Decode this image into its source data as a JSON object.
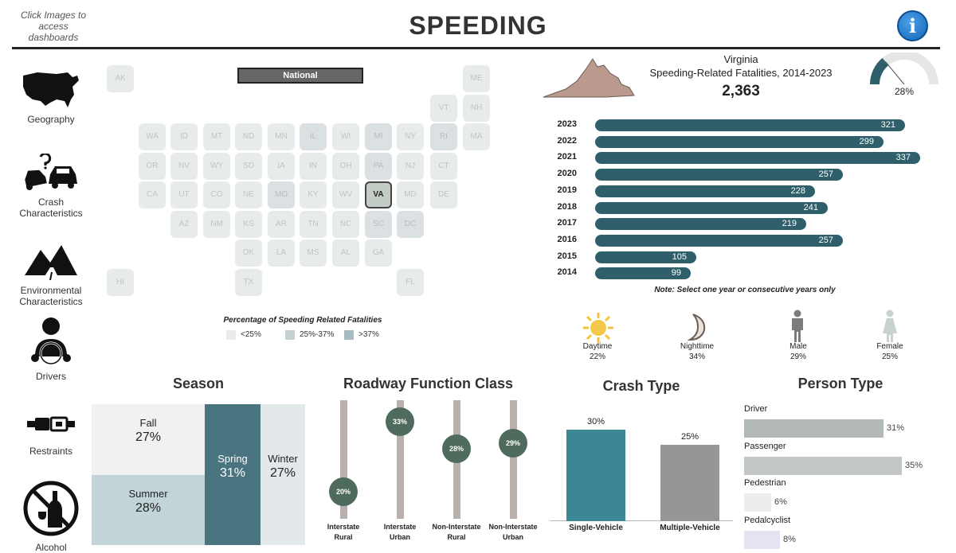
{
  "header": {
    "hint": "Click Images to access dashboards",
    "title": "SPEEDING",
    "info_glyph": "i"
  },
  "nav": {
    "items": [
      {
        "label": "Geography",
        "icon": "usa-map-icon"
      },
      {
        "label": "Crash Characteristics",
        "icon": "crash-cars-icon"
      },
      {
        "label": "Environmental Characteristics",
        "icon": "mountain-road-icon"
      },
      {
        "label": "Drivers",
        "icon": "driver-icon"
      },
      {
        "label": "Restraints",
        "icon": "seatbelt-icon"
      },
      {
        "label": "Alcohol",
        "icon": "no-alcohol-icon"
      }
    ]
  },
  "map": {
    "national_label": "National",
    "tiles": [
      "AK",
      "ME",
      "VT",
      "NH",
      "WA",
      "ID",
      "MT",
      "ND",
      "MN",
      "IL",
      "WI",
      "MI",
      "NY",
      "RI",
      "MA",
      "OR",
      "NV",
      "WY",
      "SD",
      "IA",
      "IN",
      "OH",
      "PA",
      "NJ",
      "CT",
      "CA",
      "UT",
      "CO",
      "NE",
      "MO",
      "KY",
      "WV",
      "VA",
      "MD",
      "DE",
      "AZ",
      "NM",
      "KS",
      "AR",
      "TN",
      "NC",
      "SC",
      "DC",
      "OK",
      "LA",
      "MS",
      "AL",
      "GA",
      "HI",
      "TX",
      "FL"
    ],
    "selected": "VA",
    "legend": {
      "title": "Percentage of Speeding Related Fatalities",
      "items": [
        {
          "label": "<25%",
          "color": "#e8ebeb"
        },
        {
          "label": "25%-37%",
          "color": "#c5d0d1"
        },
        {
          "label": ">37%",
          "color": "#a7bcc2"
        }
      ]
    }
  },
  "state": {
    "name": "Virginia",
    "subtitle": "Speeding-Related Fatalities, 2014-2023",
    "total": "2,363",
    "gauge_label": "28%",
    "gauge_value": 0.28
  },
  "years": {
    "rows": [
      {
        "year": "2023",
        "value": 321
      },
      {
        "year": "2022",
        "value": 299
      },
      {
        "year": "2021",
        "value": 337
      },
      {
        "year": "2020",
        "value": 257
      },
      {
        "year": "2019",
        "value": 228
      },
      {
        "year": "2018",
        "value": 241
      },
      {
        "year": "2017",
        "value": 219
      },
      {
        "year": "2016",
        "value": 257
      },
      {
        "year": "2015",
        "value": 105
      },
      {
        "year": "2014",
        "value": 99
      }
    ],
    "note": "Note: Select one year or consecutive years only"
  },
  "conditions": [
    {
      "label": "Daytime",
      "value": "22%",
      "icon": "sun-icon"
    },
    {
      "label": "Nighttime",
      "value": "34%",
      "icon": "moon-icon"
    },
    {
      "label": "Male",
      "value": "29%",
      "icon": "male-icon"
    },
    {
      "label": "Female",
      "value": "25%",
      "icon": "female-icon"
    }
  ],
  "season": {
    "title": "Season",
    "cells": [
      {
        "label": "Fall",
        "value": "27%",
        "color": "#f1f1f1"
      },
      {
        "label": "Summer",
        "value": "28%",
        "color": "#c3d4d8"
      },
      {
        "label": "Spring",
        "value": "31%",
        "color": "#4a7580"
      },
      {
        "label": "Winter",
        "value": "27%",
        "color": "#e3e8ea"
      }
    ]
  },
  "roadway": {
    "title": "Roadway Function Class",
    "items": [
      {
        "label1": "Interstate",
        "label2": "Rural",
        "value": "20%",
        "pct": 20
      },
      {
        "label1": "Interstate",
        "label2": "Urban",
        "value": "33%",
        "pct": 33
      },
      {
        "label1": "Non-Interstate",
        "label2": "Rural",
        "value": "28%",
        "pct": 28
      },
      {
        "label1": "Non-Interstate",
        "label2": "Urban",
        "value": "29%",
        "pct": 29
      }
    ]
  },
  "crash_type": {
    "title": "Crash Type",
    "bars": [
      {
        "label": "Single-Vehicle",
        "value": "30%",
        "pct": 30,
        "color": "#3b8795"
      },
      {
        "label": "Multiple-Vehicle",
        "value": "25%",
        "pct": 25,
        "color": "#969696"
      }
    ]
  },
  "person_type": {
    "title": "Person Type",
    "bars": [
      {
        "label": "Driver",
        "value": "31%",
        "pct": 31,
        "color": "#b3b8b8"
      },
      {
        "label": "Passenger",
        "value": "35%",
        "pct": 35,
        "color": "#c3c8c6"
      },
      {
        "label": "Pedestrian",
        "value": "6%",
        "pct": 6,
        "color": "#ededed"
      },
      {
        "label": "Pedalcyclist",
        "value": "8%",
        "pct": 8,
        "color": "#e3e3f1"
      }
    ]
  }
}
